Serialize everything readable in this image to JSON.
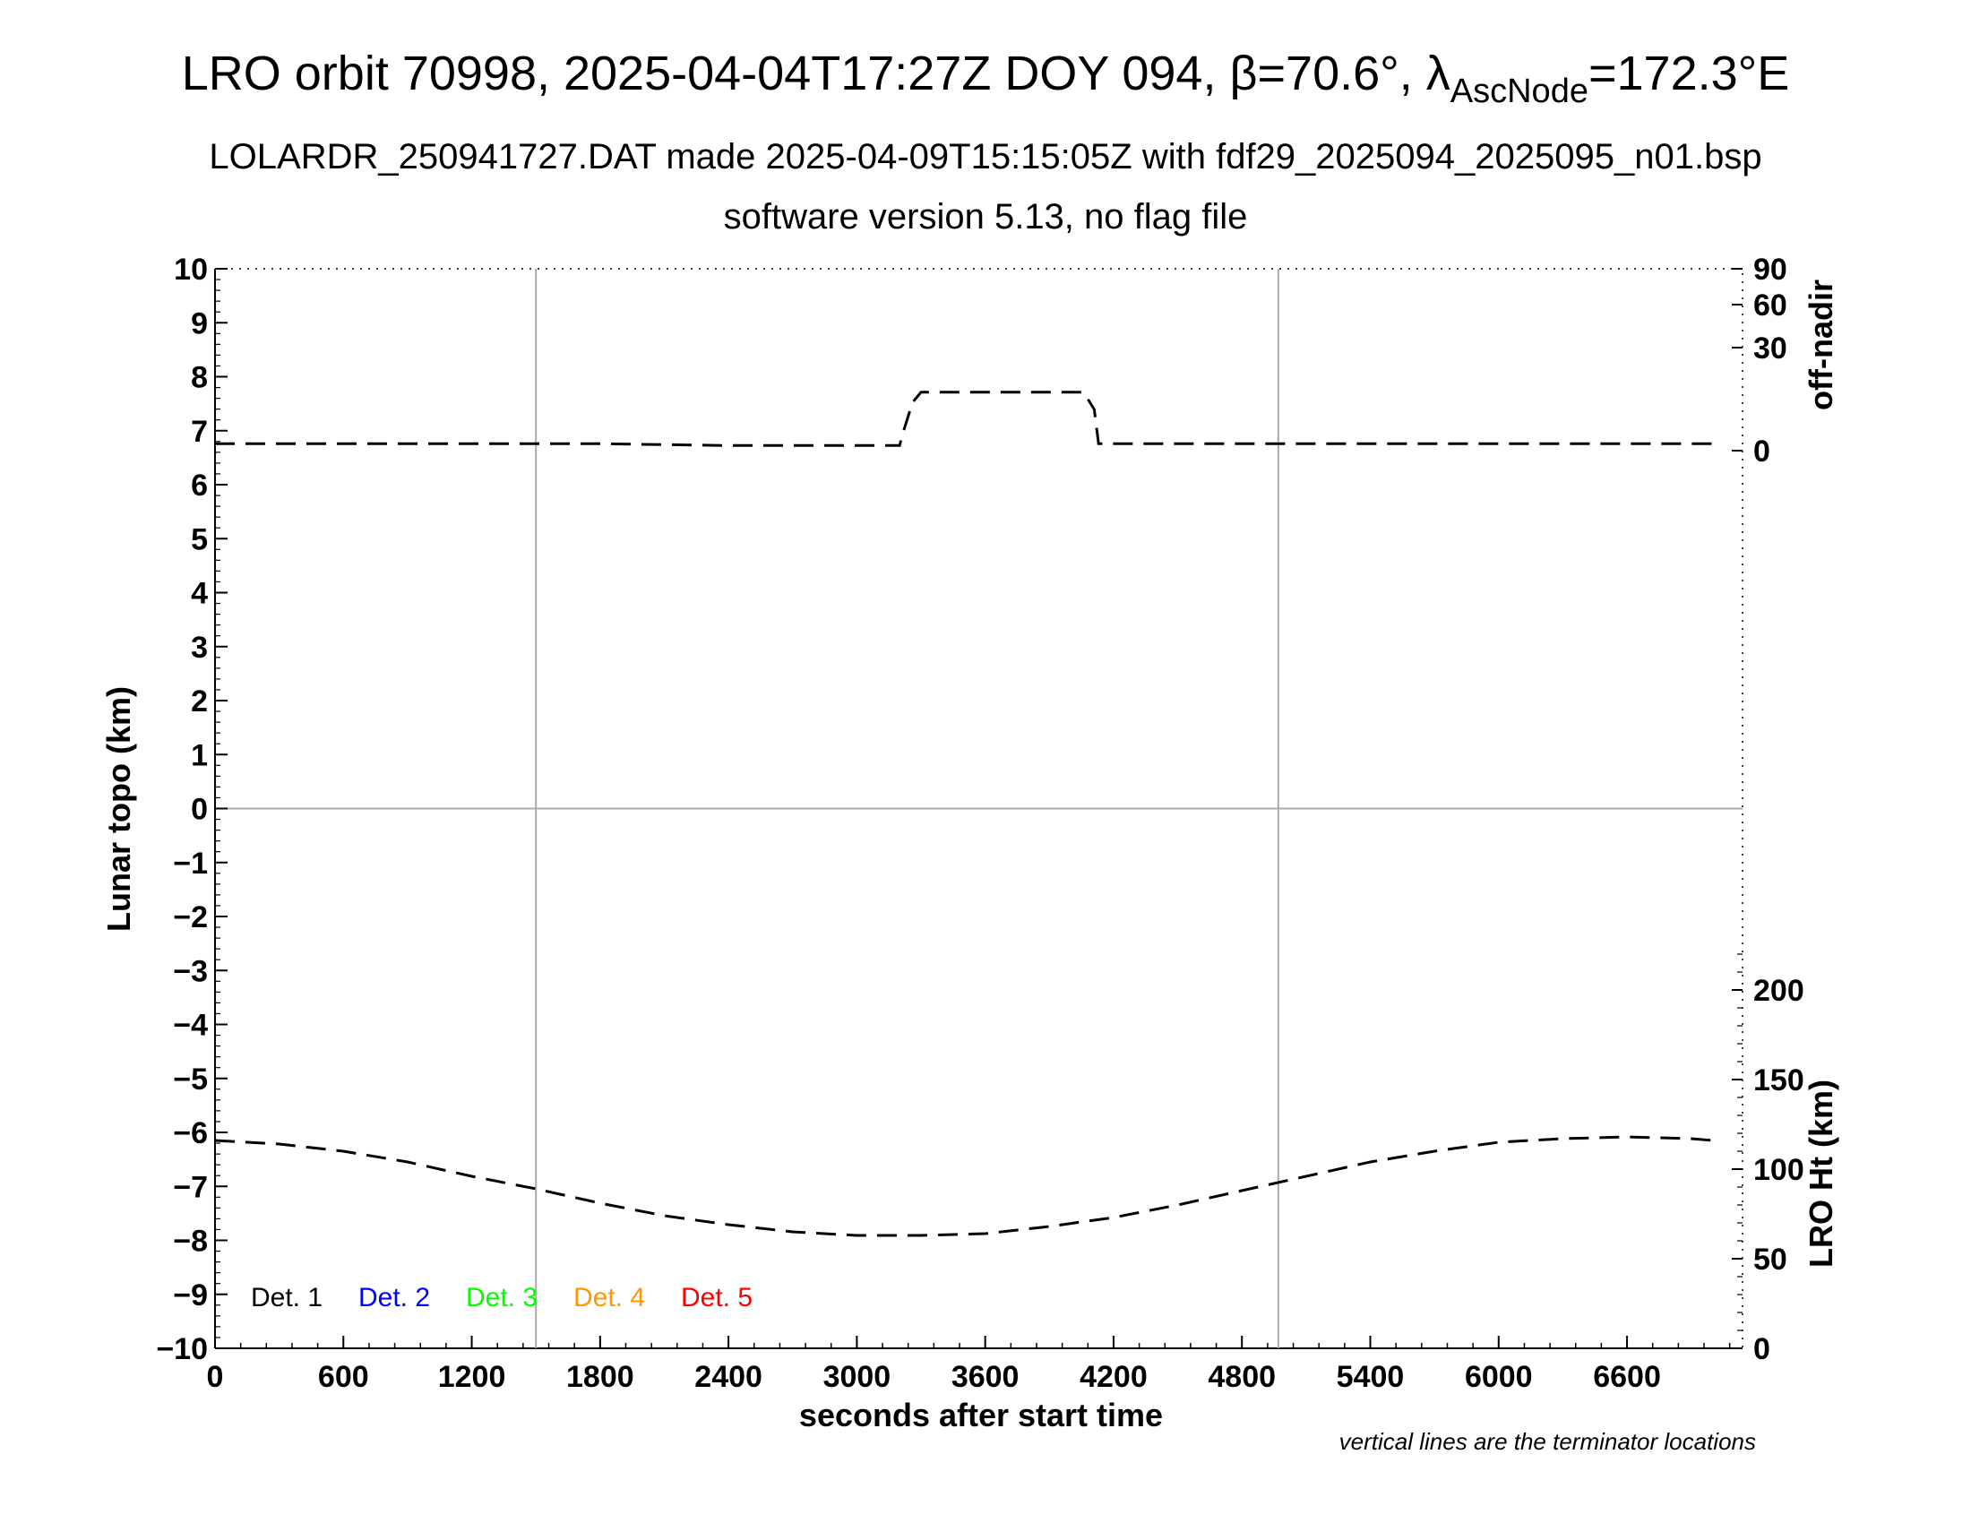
{
  "title": {
    "main": "LRO orbit 70998, 2025-04-04T17:27Z DOY 094, β=70.6°, λ",
    "sub_index": "AscNode",
    "suffix": "=172.3°E"
  },
  "subtitle_line1": "LOLARDR_250941727.DAT made 2025-04-09T15:15:05Z with fdf29_2025094_2025095_n01.bsp",
  "subtitle_line2": "software version 5.13, no flag file",
  "footnote": "vertical lines are the terminator locations",
  "legend": [
    {
      "label": "Det. 1",
      "color": "#000000"
    },
    {
      "label": "Det. 2",
      "color": "#0000ff"
    },
    {
      "label": "Det. 3",
      "color": "#00ff00"
    },
    {
      "label": "Det. 4",
      "color": "#ff9900"
    },
    {
      "label": "Det. 5",
      "color": "#ff0000"
    }
  ],
  "chart_data": {
    "type": "line",
    "xlabel": "seconds after start time",
    "ylabel_left": "Lunar topo (km)",
    "ylabel_right_top": "off-nadir",
    "ylabel_right_bottom": "LRO Ht (km)",
    "xlim": [
      0,
      7140
    ],
    "x_ticks": [
      0,
      600,
      1200,
      1800,
      2400,
      3000,
      3600,
      4200,
      4800,
      5400,
      6000,
      6600
    ],
    "ylim_left": [
      -10,
      10
    ],
    "y_ticks_left": [
      "10",
      "9",
      "8",
      "7",
      "6",
      "5",
      "4",
      "3",
      "2",
      "1",
      "0",
      "−1",
      "−2",
      "−3",
      "−4",
      "−5",
      "−6",
      "−7",
      "−8",
      "−9",
      "−10"
    ],
    "right_top_axis": {
      "ticks": [
        "90",
        "60",
        "30",
        "0"
      ],
      "tick_values": [
        90,
        60,
        30,
        0
      ]
    },
    "right_bottom_axis": {
      "ticks": [
        "200",
        "150",
        "100",
        "50",
        "0"
      ],
      "tick_values": [
        200,
        150,
        100,
        50,
        0
      ]
    },
    "terminator_lines_x": [
      1500,
      4970
    ],
    "series": [
      {
        "axis": "off-nadir",
        "style": "dashed",
        "x": [
          0,
          600,
          1200,
          1800,
          2400,
          3000,
          3200,
          3220,
          3260,
          3300,
          4000,
          4060,
          4110,
          4130,
          4200,
          4800,
          5400,
          6000,
          6600,
          7000
        ],
        "y": [
          2.0,
          2.0,
          2.0,
          2.0,
          1.5,
          1.5,
          1.5,
          6,
          14,
          17,
          17,
          17,
          12,
          2.0,
          2.0,
          2.0,
          2.0,
          2.0,
          2.0,
          2.0
        ]
      },
      {
        "axis": "LRO Ht (km)",
        "style": "dashed",
        "x": [
          0,
          300,
          600,
          900,
          1200,
          1500,
          1800,
          2100,
          2400,
          2700,
          3000,
          3300,
          3600,
          3900,
          4200,
          4500,
          4800,
          5100,
          5400,
          5700,
          6000,
          6300,
          6600,
          6900,
          7000
        ],
        "y": [
          116,
          114,
          110,
          104,
          96,
          89,
          81,
          74,
          69,
          65,
          63,
          63,
          64,
          68,
          73,
          80,
          88,
          96,
          104,
          110,
          115,
          117,
          118,
          117,
          116
        ]
      }
    ],
    "grid": true
  }
}
